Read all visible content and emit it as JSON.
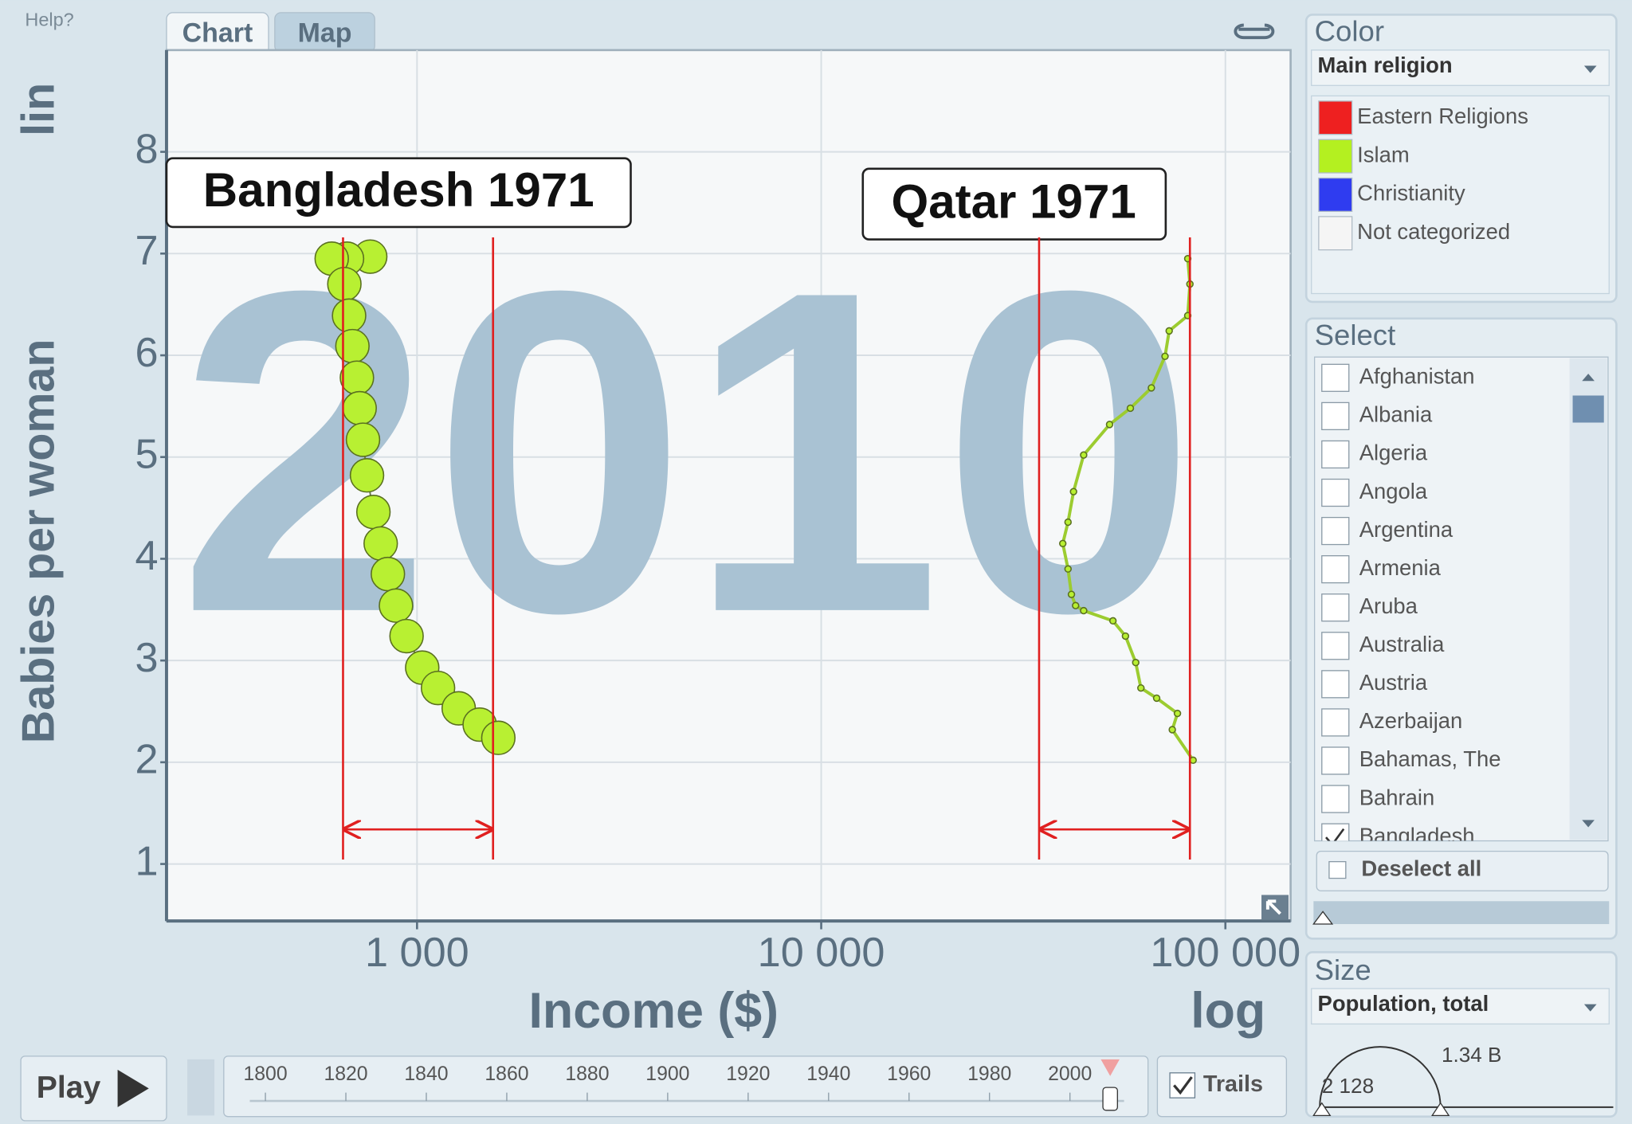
{
  "help": "Help?",
  "tabs": [
    "Chart",
    "Map"
  ],
  "chart_data": {
    "type": "scatter",
    "year": 2010,
    "xlabel": "Income ($)",
    "ylabel": "Babies per woman",
    "x_scale_label": "log",
    "y_scale_label": "lin",
    "log_x": true,
    "grid": true,
    "xlim": [
      240,
      145000
    ],
    "ylim": [
      0.44,
      9
    ],
    "xticks": [
      {
        "value": 1000,
        "label": "1 000"
      },
      {
        "value": 10000,
        "label": "10 000"
      },
      {
        "value": 100000,
        "label": "100 000"
      }
    ],
    "yticks": [
      1,
      2,
      3,
      4,
      5,
      6,
      7,
      8
    ],
    "annotations": [
      "Bangladesh 1971",
      "Qatar 1971"
    ],
    "series": [
      {
        "color": "#b8f032",
        "x": [
          766,
          671,
          615,
          661,
          679,
          692,
          710,
          721,
          735,
          752,
          780,
          813,
          847,
          887,
          942,
          1030,
          1127,
          1268,
          1429,
          1589
        ],
        "values": [
          6.97,
          6.95,
          6.95,
          6.7,
          6.39,
          6.09,
          5.78,
          5.48,
          5.17,
          4.82,
          4.46,
          4.15,
          3.85,
          3.54,
          3.24,
          2.93,
          2.73,
          2.53,
          2.37,
          2.24
        ]
      },
      {
        "color": "#b8f032",
        "x": [
          80700,
          81700,
          80700,
          72600,
          70900,
          65600,
          58200,
          51700,
          44600,
          42100,
          40800,
          39600,
          40800,
          41600,
          42600,
          44600,
          52700,
          56600,
          60000,
          61800,
          67600,
          76100,
          73900,
          83200
        ],
        "values": [
          6.95,
          6.7,
          6.39,
          6.24,
          5.99,
          5.68,
          5.48,
          5.32,
          5.02,
          4.66,
          4.36,
          4.15,
          3.9,
          3.65,
          3.54,
          3.49,
          3.39,
          3.24,
          2.98,
          2.73,
          2.63,
          2.48,
          2.32,
          2.02
        ]
      }
    ],
    "ranges": [
      [
        656,
        1542
      ],
      [
        34600,
        81700
      ]
    ]
  },
  "color_panel": {
    "title": "Color",
    "dropdown": "Main religion",
    "legend": [
      {
        "label": "Eastern Religions",
        "color": "#ee2020"
      },
      {
        "label": "Islam",
        "color": "#b4f020"
      },
      {
        "label": "Christianity",
        "color": "#2f3cf0"
      },
      {
        "label": "Not categorized",
        "color": "#f5f5f5"
      }
    ]
  },
  "select_panel": {
    "title": "Select",
    "items": [
      {
        "label": "Afghanistan",
        "checked": false
      },
      {
        "label": "Albania",
        "checked": false
      },
      {
        "label": "Algeria",
        "checked": false
      },
      {
        "label": "Angola",
        "checked": false
      },
      {
        "label": "Argentina",
        "checked": false
      },
      {
        "label": "Armenia",
        "checked": false
      },
      {
        "label": "Aruba",
        "checked": false
      },
      {
        "label": "Australia",
        "checked": false
      },
      {
        "label": "Austria",
        "checked": false
      },
      {
        "label": "Azerbaijan",
        "checked": false
      },
      {
        "label": "Bahamas, The",
        "checked": false
      },
      {
        "label": "Bahrain",
        "checked": false
      },
      {
        "label": "Bangladesh",
        "checked": true
      }
    ],
    "deselect": "Deselect all"
  },
  "size_panel": {
    "title": "Size",
    "dropdown": "Population, total",
    "max_label": "1.34 B",
    "min_label": "2 128"
  },
  "play": "Play",
  "timeline": {
    "ticks": [
      1800,
      1820,
      1840,
      1860,
      1880,
      1900,
      1920,
      1940,
      1960,
      1980,
      2000
    ]
  },
  "trails": {
    "label": "Trails",
    "checked": true
  }
}
